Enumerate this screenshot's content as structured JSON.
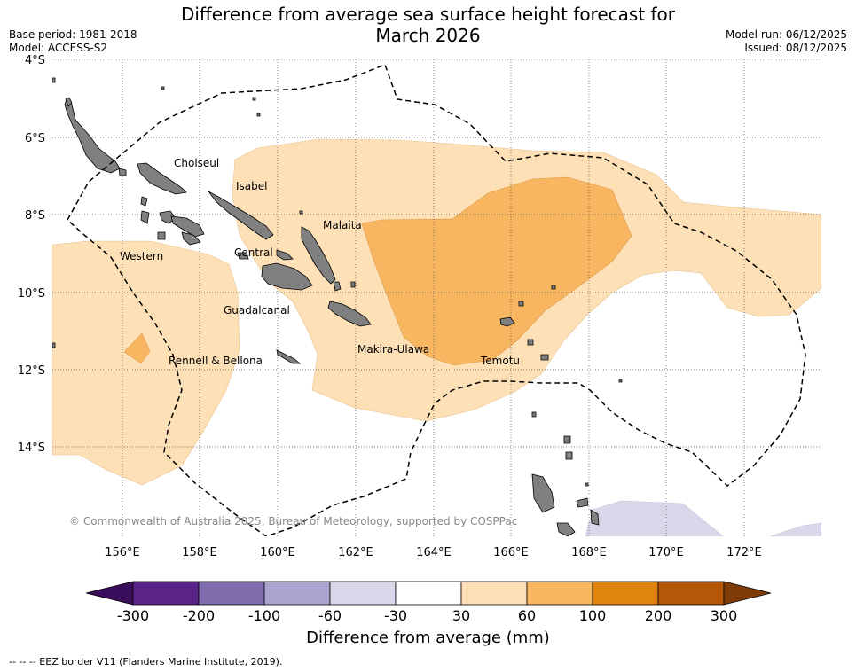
{
  "header": {
    "title_line1": "Difference from average sea surface height forecast for",
    "title_line2": "March 2026",
    "base_period": "Base period: 1981-2018",
    "model": "Model: ACCESS-S2",
    "model_run": "Model run: 06/12/2025",
    "issued": "Issued: 08/12/2025"
  },
  "map": {
    "lat_labels": [
      "4°S",
      "6°S",
      "8°S",
      "10°S",
      "12°S",
      "14°S"
    ],
    "lon_labels": [
      "156°E",
      "158°E",
      "160°E",
      "162°E",
      "164°E",
      "166°E",
      "168°E",
      "170°E",
      "172°E"
    ],
    "provinces": [
      "Choiseul",
      "Isabel",
      "Malaita",
      "Western",
      "Central",
      "Guadalcanal",
      "Makira-Ulawa",
      "Rennell & Bellona",
      "Temotu"
    ],
    "copyright": "© Commonwealth of Australia 2025, Bureau of Meteorology, supported by COSPPac",
    "land_color": "#808080",
    "eez_line": "dashed black"
  },
  "colorbar": {
    "colors": [
      "#3a0c5c",
      "#5a2387",
      "#7f6dab",
      "#aba4cf",
      "#d8d8ea",
      "#ffffff",
      "#fde0b5",
      "#f9b661",
      "#e0830f",
      "#b35807",
      "#7f3b08"
    ],
    "tick_labels": [
      "-300",
      "-200",
      "-100",
      "-60",
      "-30",
      "30",
      "60",
      "100",
      "200",
      "300"
    ],
    "title": "Difference from average (mm)"
  },
  "footer": {
    "eez_note": "--  --  -- EEZ border V11 (Flanders Marine Institute, 2019)."
  }
}
